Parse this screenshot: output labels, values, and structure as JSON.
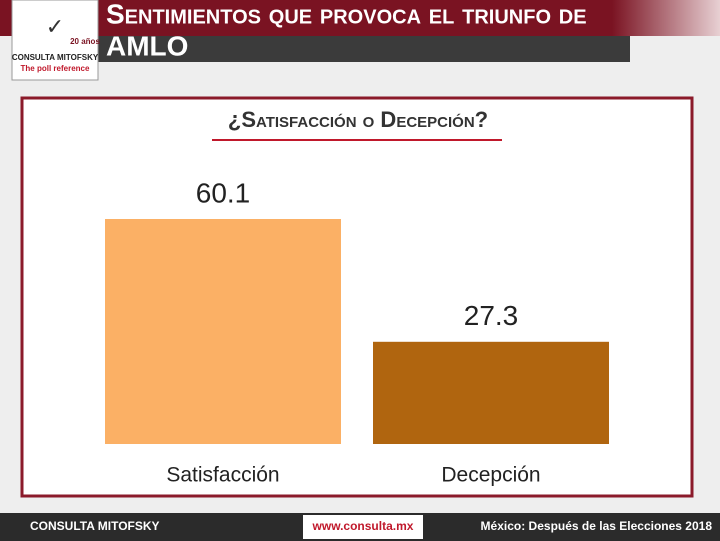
{
  "header": {
    "title_line1": "Sentimientos que provoca el triunfo de",
    "title_line2": "AMLO",
    "logo_name": "CONSULTA MITOFSKY",
    "logo_tagline": "The poll reference",
    "logo_years": "20 años"
  },
  "chart_data": {
    "type": "bar",
    "title": "¿Satisfacción o Decepción?",
    "categories": [
      "Satisfacción",
      "Decepción"
    ],
    "values": [
      60.1,
      27.3
    ],
    "colors": [
      "#fbb065",
      "#b0650f"
    ]
  },
  "footer": {
    "brand": "CONSULTA MITOFSKY",
    "url": "www.consulta.mx",
    "event": "México: Después de las Elecciones 2018"
  }
}
